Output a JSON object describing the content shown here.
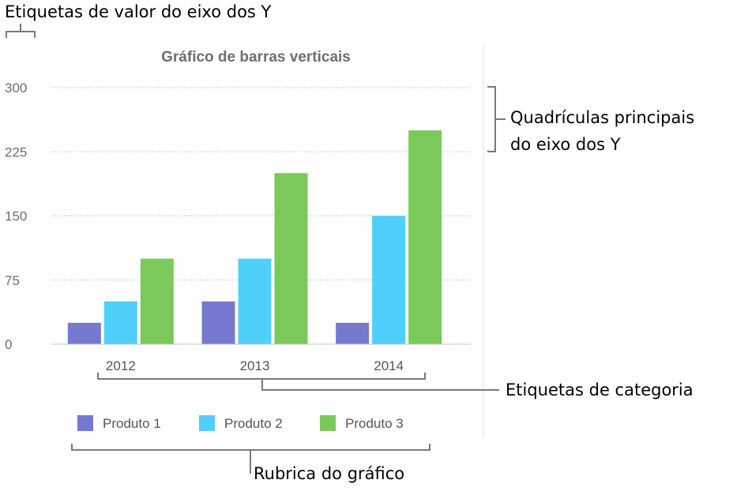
{
  "callouts": {
    "y_value_labels": "Etiquetas de valor do eixo dos Y",
    "major_gridlines_line1": "Quadrículas principais",
    "major_gridlines_line2": "do eixo dos Y",
    "category_labels": "Etiquetas de categoria",
    "legend": "Rubrica do gráfico"
  },
  "chart_data": {
    "type": "bar",
    "title": "Gráfico de barras verticais",
    "categories": [
      "2012",
      "2013",
      "2014"
    ],
    "series": [
      {
        "name": "Produto 1",
        "values": [
          25,
          50,
          25
        ],
        "color": "#7579d0"
      },
      {
        "name": "Produto 2",
        "values": [
          50,
          100,
          150
        ],
        "color": "#4fd0fa"
      },
      {
        "name": "Produto 3",
        "values": [
          100,
          200,
          250
        ],
        "color": "#7ac95a"
      }
    ],
    "yticks": [
      0,
      75,
      150,
      225,
      300
    ],
    "ylim": [
      0,
      300
    ],
    "grid": true,
    "legend_position": "bottom",
    "xlabel": "",
    "ylabel": ""
  }
}
